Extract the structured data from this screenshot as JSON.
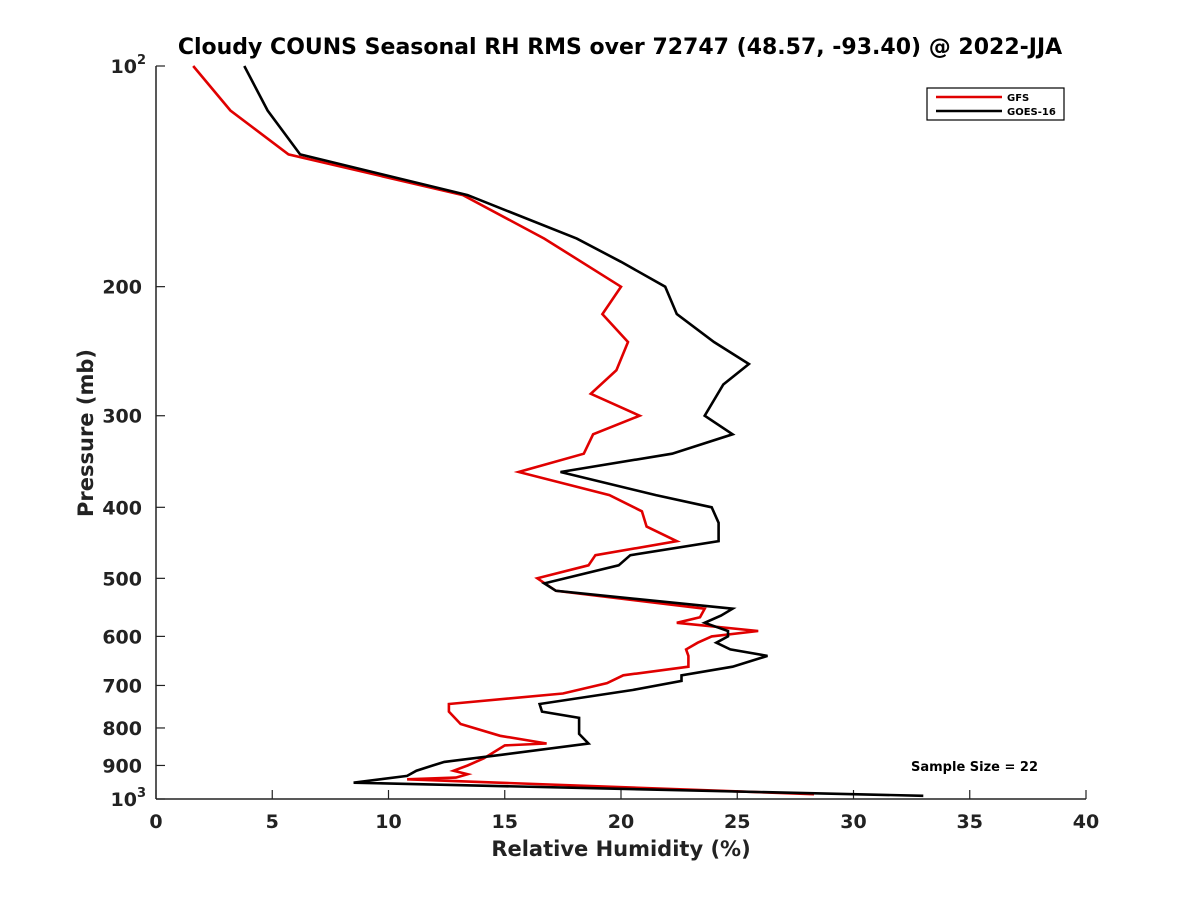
{
  "chart_data": {
    "type": "line",
    "title": "Cloudy COUNS Seasonal RH RMS over 72747 (48.57, -93.40) @ 2022-JJA",
    "xlabel": "Relative Humidity (%)",
    "ylabel": "Pressure (mb)",
    "xlim": [
      0,
      40
    ],
    "ylim": [
      100,
      1000
    ],
    "yscale": "log",
    "y_reversed": true,
    "xticks": [
      0,
      5,
      10,
      15,
      20,
      25,
      30,
      35,
      40
    ],
    "xtick_labels": [
      "0",
      "5",
      "10",
      "15",
      "20",
      "25",
      "30",
      "35",
      "40"
    ],
    "yticks": [
      100,
      200,
      300,
      400,
      500,
      600,
      700,
      800,
      900,
      1000
    ],
    "ytick_labels": [
      {
        "base": "10",
        "sup": "2"
      },
      {
        "base": "200"
      },
      {
        "base": "300"
      },
      {
        "base": "400"
      },
      {
        "base": "500"
      },
      {
        "base": "600"
      },
      {
        "base": "700"
      },
      {
        "base": "800"
      },
      {
        "base": "900"
      },
      {
        "base": "10",
        "sup": "3"
      }
    ],
    "grid": false,
    "legend_position": "top-right",
    "annotation": "Sample Size = 22",
    "series": [
      {
        "name": "GFS",
        "color": "#e00000",
        "points": [
          [
            1.6,
            100
          ],
          [
            3.2,
            115
          ],
          [
            5.7,
            132
          ],
          [
            13.2,
            150
          ],
          [
            16.7,
            172
          ],
          [
            20.0,
            200
          ],
          [
            19.2,
            218
          ],
          [
            20.3,
            238
          ],
          [
            19.8,
            260
          ],
          [
            18.7,
            280
          ],
          [
            20.8,
            300
          ],
          [
            18.8,
            318
          ],
          [
            18.4,
            338
          ],
          [
            15.6,
            358
          ],
          [
            19.5,
            385
          ],
          [
            20.9,
            405
          ],
          [
            21.1,
            425
          ],
          [
            22.4,
            445
          ],
          [
            18.9,
            465
          ],
          [
            18.6,
            480
          ],
          [
            16.4,
            500
          ],
          [
            17.2,
            520
          ],
          [
            23.6,
            550
          ],
          [
            23.4,
            565
          ],
          [
            22.4,
            575
          ],
          [
            25.9,
            590
          ],
          [
            23.9,
            600
          ],
          [
            23.3,
            612
          ],
          [
            22.8,
            625
          ],
          [
            22.9,
            638
          ],
          [
            22.9,
            660
          ],
          [
            20.1,
            678
          ],
          [
            19.4,
            695
          ],
          [
            17.5,
            718
          ],
          [
            12.6,
            742
          ],
          [
            12.6,
            760
          ],
          [
            13.1,
            790
          ],
          [
            14.8,
            820
          ],
          [
            16.8,
            840
          ],
          [
            15.0,
            845
          ],
          [
            14.1,
            880
          ],
          [
            13.4,
            900
          ],
          [
            12.8,
            915
          ],
          [
            13.4,
            925
          ],
          [
            12.9,
            935
          ],
          [
            10.8,
            940
          ],
          [
            28.3,
            985
          ]
        ]
      },
      {
        "name": "GOES-16",
        "color": "#000000",
        "points": [
          [
            3.8,
            100
          ],
          [
            4.8,
            115
          ],
          [
            6.2,
            132
          ],
          [
            13.4,
            150
          ],
          [
            18.1,
            172
          ],
          [
            20.0,
            185
          ],
          [
            21.9,
            200
          ],
          [
            22.4,
            218
          ],
          [
            24.0,
            238
          ],
          [
            25.5,
            255
          ],
          [
            24.4,
            272
          ],
          [
            23.6,
            300
          ],
          [
            24.8,
            318
          ],
          [
            22.2,
            338
          ],
          [
            17.4,
            358
          ],
          [
            21.5,
            385
          ],
          [
            23.9,
            400
          ],
          [
            24.2,
            420
          ],
          [
            24.2,
            445
          ],
          [
            20.4,
            465
          ],
          [
            19.9,
            480
          ],
          [
            16.7,
            508
          ],
          [
            17.2,
            520
          ],
          [
            24.8,
            550
          ],
          [
            24.3,
            562
          ],
          [
            23.6,
            575
          ],
          [
            24.6,
            590
          ],
          [
            24.6,
            600
          ],
          [
            24.1,
            612
          ],
          [
            24.7,
            625
          ],
          [
            26.3,
            638
          ],
          [
            24.8,
            660
          ],
          [
            22.6,
            678
          ],
          [
            22.6,
            690
          ],
          [
            20.5,
            710
          ],
          [
            16.5,
            742
          ],
          [
            16.6,
            760
          ],
          [
            18.2,
            775
          ],
          [
            18.2,
            815
          ],
          [
            18.6,
            840
          ],
          [
            14.9,
            870
          ],
          [
            12.4,
            890
          ],
          [
            11.9,
            900
          ],
          [
            11.2,
            915
          ],
          [
            10.8,
            930
          ],
          [
            8.5,
            950
          ],
          [
            33.0,
            990
          ]
        ]
      }
    ]
  }
}
